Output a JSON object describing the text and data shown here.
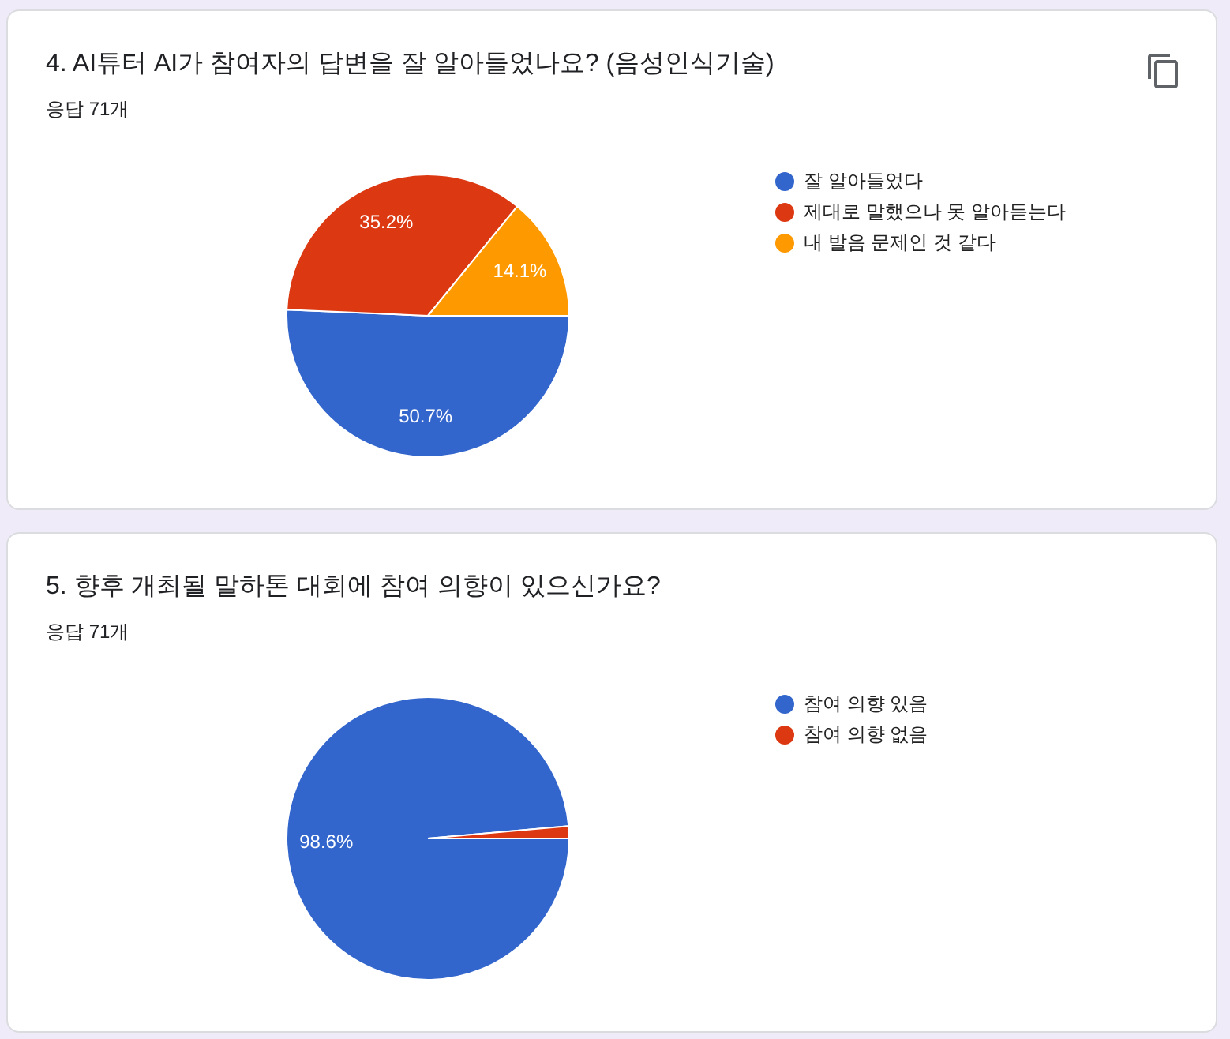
{
  "chart_data": [
    {
      "type": "pie",
      "title": "4. AI튜터 AI가 참여자의 답변을 잘 알아들었나요? (음성인식기술)",
      "subtitle": "응답 71개",
      "categories": [
        "잘 알아들었다",
        "제대로 말했으나 못 알아듣는다",
        "내 발음 문제인 것 같다"
      ],
      "values": [
        50.7,
        35.2,
        14.1
      ],
      "colors": [
        "#3366cc",
        "#dc3912",
        "#ff9900"
      ],
      "value_labels": [
        "50.7%",
        "35.2%",
        "14.1%"
      ],
      "legend": "top right"
    },
    {
      "type": "pie",
      "title": "5. 향후 개최될 말하톤 대회에 참여 의향이 있으신가요?",
      "subtitle": "응답 71개",
      "categories": [
        "참여 의향 있음",
        "참여 의향 없음"
      ],
      "values": [
        98.6,
        1.4
      ],
      "colors": [
        "#3366cc",
        "#dc3912"
      ],
      "value_labels": [
        "98.6%",
        null
      ],
      "legend": "top right"
    }
  ]
}
